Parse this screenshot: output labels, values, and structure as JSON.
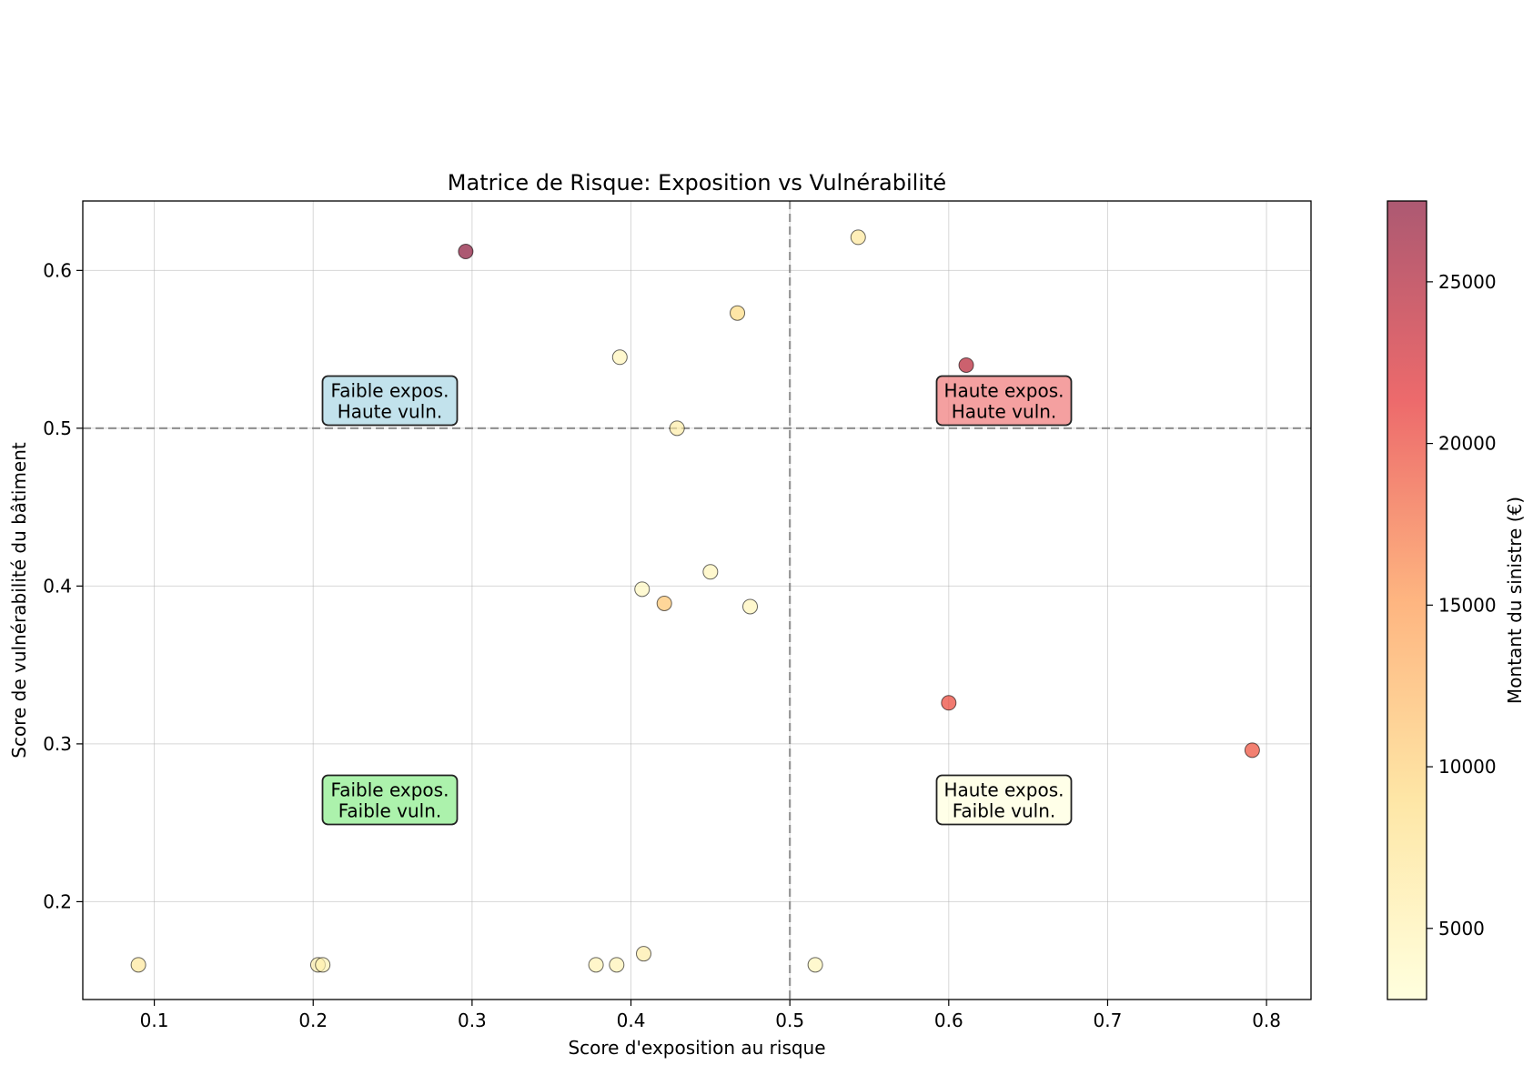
{
  "chart_data": {
    "type": "scatter",
    "title": "Matrice de Risque: Exposition vs Vulnérabilité",
    "xlabel": "Score d'exposition au risque",
    "ylabel": "Score de vulnérabilité du bâtiment",
    "colorbar_label": "Montant du sinistre (€)",
    "xlim": [
      0.055,
      0.828
    ],
    "ylim": [
      0.138,
      0.644
    ],
    "clim": [
      2800,
      27500
    ],
    "colormap": "YlOrRd",
    "xticks": [
      0.1,
      0.2,
      0.3,
      0.4,
      0.5,
      0.6,
      0.7,
      0.8
    ],
    "xtick_labels": [
      "0.1",
      "0.2",
      "0.3",
      "0.4",
      "0.5",
      "0.6",
      "0.7",
      "0.8"
    ],
    "yticks": [
      0.2,
      0.3,
      0.4,
      0.5,
      0.6
    ],
    "ytick_labels": [
      "0.2",
      "0.3",
      "0.4",
      "0.5",
      "0.6"
    ],
    "cticks": [
      5000,
      10000,
      15000,
      20000,
      25000
    ],
    "ctick_labels": [
      "5000",
      "10000",
      "15000",
      "20000",
      "25000"
    ],
    "grid": true,
    "threshold_x": 0.5,
    "threshold_y": 0.5,
    "quadrant_labels": [
      {
        "line1": "Faible expos.",
        "line2": "Haute vuln.",
        "color": "#add8e6",
        "x": 0.25,
        "y": 0.75
      },
      {
        "line1": "Haute expos.",
        "line2": "Haute vuln.",
        "color": "#f08080",
        "x": 0.75,
        "y": 0.75
      },
      {
        "line1": "Faible expos.",
        "line2": "Faible vuln.",
        "color": "#90ee90",
        "x": 0.25,
        "y": 0.25
      },
      {
        "line1": "Haute expos.",
        "line2": "Faible vuln.",
        "color": "#ffffe0",
        "x": 0.75,
        "y": 0.25
      }
    ],
    "points": [
      {
        "x": 0.296,
        "y": 0.612,
        "value": 27500
      },
      {
        "x": 0.543,
        "y": 0.621,
        "value": 7000
      },
      {
        "x": 0.467,
        "y": 0.573,
        "value": 9000
      },
      {
        "x": 0.393,
        "y": 0.545,
        "value": 4500
      },
      {
        "x": 0.611,
        "y": 0.54,
        "value": 24500
      },
      {
        "x": 0.429,
        "y": 0.5,
        "value": 6000
      },
      {
        "x": 0.45,
        "y": 0.409,
        "value": 4500
      },
      {
        "x": 0.407,
        "y": 0.398,
        "value": 4000
      },
      {
        "x": 0.421,
        "y": 0.389,
        "value": 11000
      },
      {
        "x": 0.475,
        "y": 0.387,
        "value": 4500
      },
      {
        "x": 0.6,
        "y": 0.326,
        "value": 20000
      },
      {
        "x": 0.791,
        "y": 0.296,
        "value": 19500
      },
      {
        "x": 0.09,
        "y": 0.16,
        "value": 7000
      },
      {
        "x": 0.203,
        "y": 0.16,
        "value": 5500
      },
      {
        "x": 0.206,
        "y": 0.16,
        "value": 5000
      },
      {
        "x": 0.378,
        "y": 0.16,
        "value": 5000
      },
      {
        "x": 0.391,
        "y": 0.16,
        "value": 5000
      },
      {
        "x": 0.408,
        "y": 0.167,
        "value": 6000
      },
      {
        "x": 0.516,
        "y": 0.16,
        "value": 4500
      }
    ]
  }
}
